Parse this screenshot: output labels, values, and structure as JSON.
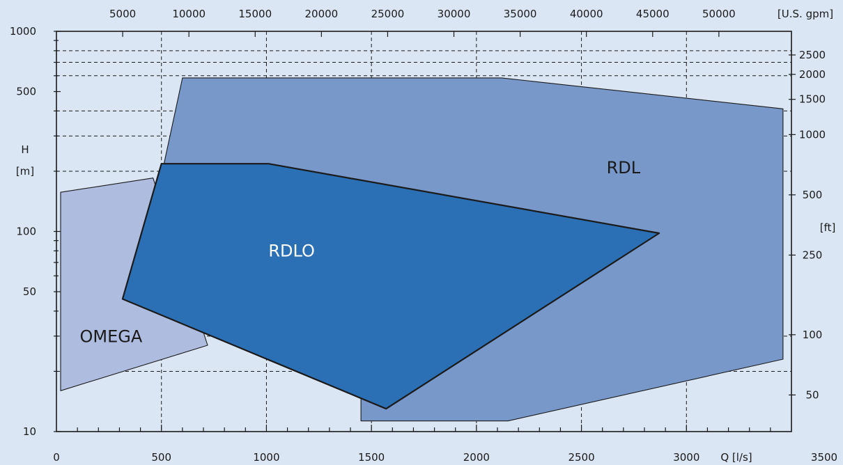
{
  "chart_data": {
    "type": "area",
    "title": "",
    "colors": {
      "background": "#dbe6f4",
      "omega": "#aebcdf",
      "rdl": "#7898c9",
      "rdlo": "#2b70b4",
      "axis": "#1a1a1a"
    },
    "x_bottom": {
      "unit_label": "Q [l/s]",
      "range": [
        0,
        3500
      ],
      "tick_labels": [
        {
          "value": 0,
          "label": "0"
        },
        {
          "value": 500,
          "label": "500"
        },
        {
          "value": 1000,
          "label": "1000"
        },
        {
          "value": 1500,
          "label": "1500"
        },
        {
          "value": 2000,
          "label": "2000"
        },
        {
          "value": 2500,
          "label": "2500"
        },
        {
          "value": 3000,
          "label": "3000"
        },
        {
          "value": 3500,
          "label": "3500"
        }
      ],
      "grid": [
        500,
        1000,
        1500,
        2000,
        2500,
        3000
      ]
    },
    "x_top": {
      "unit_label": "[U.S. gpm]",
      "tick_labels": [
        {
          "value": 5000,
          "label": "5000"
        },
        {
          "value": 10000,
          "label": "10000"
        },
        {
          "value": 15000,
          "label": "15000"
        },
        {
          "value": 20000,
          "label": "20000"
        },
        {
          "value": 25000,
          "label": "25000"
        },
        {
          "value": 30000,
          "label": "30000"
        },
        {
          "value": 35000,
          "label": "35000"
        },
        {
          "value": 40000,
          "label": "40000"
        },
        {
          "value": 45000,
          "label": "45000"
        },
        {
          "value": 50000,
          "label": "50000"
        }
      ]
    },
    "y_left": {
      "label_line1": "H",
      "label_line2": "[m]",
      "scale": "log",
      "range": [
        10,
        1000
      ],
      "tick_labels": [
        {
          "value": 10,
          "label": "10"
        },
        {
          "value": 50,
          "label": "50"
        },
        {
          "value": 100,
          "label": "100"
        },
        {
          "value": 500,
          "label": "500"
        },
        {
          "value": 1000,
          "label": "1000"
        }
      ],
      "minor_ticks": [
        20,
        30,
        40,
        60,
        70,
        80,
        90,
        200,
        300,
        400,
        600,
        700,
        800,
        900
      ],
      "grid": [
        20,
        30,
        200,
        300,
        400,
        600,
        700,
        800
      ]
    },
    "y_right": {
      "unit_label": "[ft]",
      "tick_labels": [
        {
          "value": 50,
          "label": "50"
        },
        {
          "value": 100,
          "label": "100"
        },
        {
          "value": 250,
          "label": "250"
        },
        {
          "value": 500,
          "label": "500"
        },
        {
          "value": 1000,
          "label": "1000"
        },
        {
          "value": 1500,
          "label": "1500"
        },
        {
          "value": 2000,
          "label": "2000"
        },
        {
          "value": 2500,
          "label": "2500"
        }
      ]
    },
    "series": [
      {
        "name": "OMEGA",
        "label_at": {
          "q": 260,
          "h": 28
        },
        "points": [
          [
            20,
            16
          ],
          [
            20,
            157
          ],
          [
            460,
            185
          ],
          [
            720,
            27
          ]
        ]
      },
      {
        "name": "RDL",
        "label_at": {
          "q": 2700,
          "h": 195
        },
        "points": [
          [
            600,
            585
          ],
          [
            2120,
            585
          ],
          [
            3460,
            410
          ],
          [
            3460,
            23
          ],
          [
            2150,
            11.3
          ],
          [
            1450,
            11.3
          ],
          [
            1450,
            15
          ],
          [
            500,
            190
          ]
        ]
      },
      {
        "name": "RDLO",
        "label_at": {
          "q": 1120,
          "h": 75
        },
        "points": [
          [
            500,
            218
          ],
          [
            1010,
            218
          ],
          [
            2870,
            98
          ],
          [
            1570,
            13
          ],
          [
            315,
            46
          ]
        ]
      }
    ]
  }
}
